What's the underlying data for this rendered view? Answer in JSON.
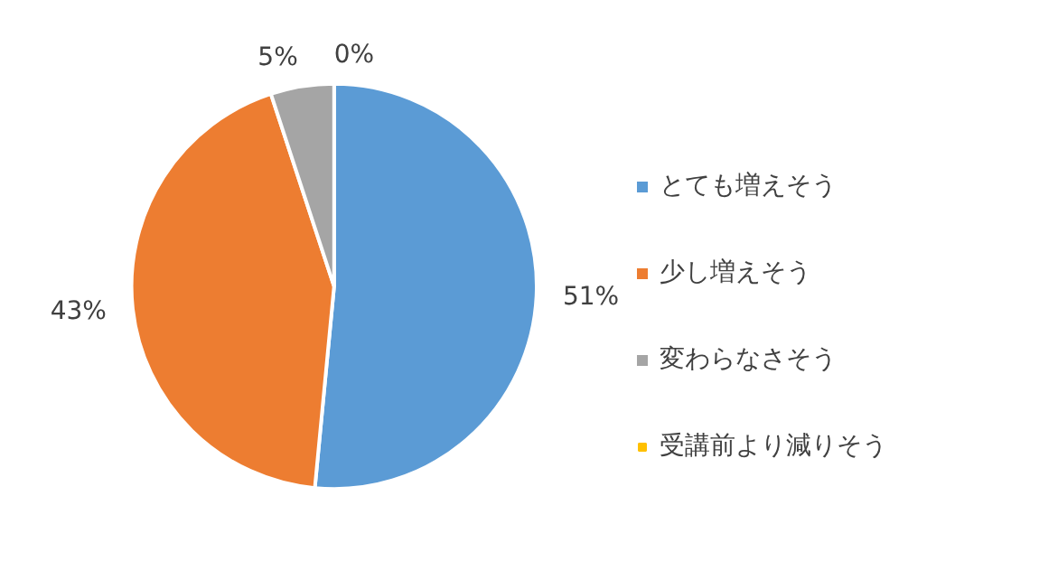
{
  "chart_data": {
    "type": "pie",
    "categories": [
      "とても増えそう",
      "少し増えそう",
      "変わらなさそう",
      "受講前より減りそう"
    ],
    "values": [
      51,
      43,
      5,
      0
    ],
    "colors": [
      "#5b9bd5",
      "#ed7d31",
      "#a5a5a5",
      "#ffc000"
    ],
    "value_labels": [
      "51%",
      "43%",
      "5%",
      "0%"
    ],
    "legend": "right"
  }
}
